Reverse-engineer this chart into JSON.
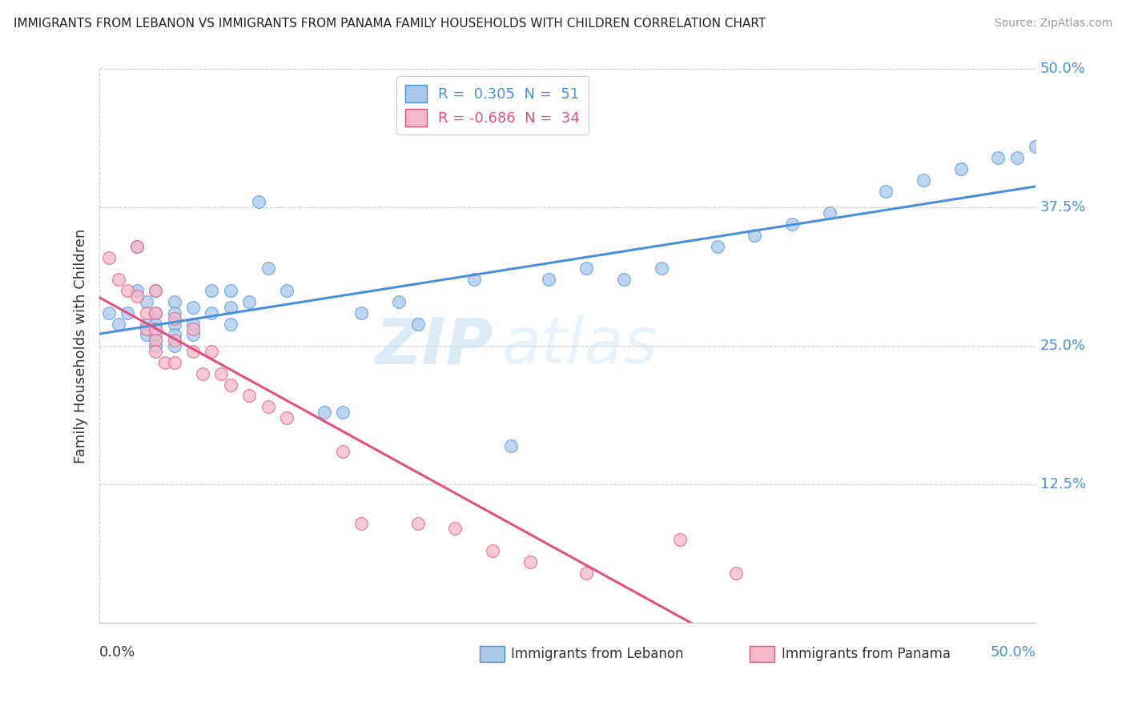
{
  "title": "IMMIGRANTS FROM LEBANON VS IMMIGRANTS FROM PANAMA FAMILY HOUSEHOLDS WITH CHILDREN CORRELATION CHART",
  "source": "Source: ZipAtlas.com",
  "ylabel": "Family Households with Children",
  "xlim": [
    0.0,
    0.5
  ],
  "ylim": [
    0.0,
    0.5
  ],
  "color_blue": "#aac8ea",
  "color_pink": "#f4b8c8",
  "line_color_blue": "#4a90d9",
  "line_color_pink": "#e05080",
  "watermark_zip": "ZIP",
  "watermark_atlas": "atlas",
  "lebanon_x": [
    0.005,
    0.01,
    0.015,
    0.02,
    0.02,
    0.025,
    0.025,
    0.025,
    0.03,
    0.03,
    0.03,
    0.03,
    0.03,
    0.04,
    0.04,
    0.04,
    0.04,
    0.04,
    0.05,
    0.05,
    0.05,
    0.06,
    0.06,
    0.07,
    0.07,
    0.07,
    0.08,
    0.085,
    0.09,
    0.1,
    0.12,
    0.13,
    0.14,
    0.16,
    0.17,
    0.2,
    0.22,
    0.24,
    0.26,
    0.28,
    0.3,
    0.33,
    0.35,
    0.37,
    0.39,
    0.42,
    0.44,
    0.46,
    0.48,
    0.49,
    0.5
  ],
  "lebanon_y": [
    0.28,
    0.27,
    0.28,
    0.34,
    0.3,
    0.29,
    0.27,
    0.26,
    0.3,
    0.28,
    0.27,
    0.26,
    0.25,
    0.29,
    0.28,
    0.27,
    0.26,
    0.25,
    0.285,
    0.27,
    0.26,
    0.3,
    0.28,
    0.3,
    0.285,
    0.27,
    0.29,
    0.38,
    0.32,
    0.3,
    0.19,
    0.19,
    0.28,
    0.29,
    0.27,
    0.31,
    0.16,
    0.31,
    0.32,
    0.31,
    0.32,
    0.34,
    0.35,
    0.36,
    0.37,
    0.39,
    0.4,
    0.41,
    0.42,
    0.42,
    0.43
  ],
  "panama_x": [
    0.005,
    0.01,
    0.015,
    0.02,
    0.02,
    0.025,
    0.025,
    0.03,
    0.03,
    0.03,
    0.03,
    0.03,
    0.035,
    0.04,
    0.04,
    0.04,
    0.05,
    0.05,
    0.055,
    0.06,
    0.065,
    0.07,
    0.08,
    0.09,
    0.1,
    0.13,
    0.14,
    0.17,
    0.19,
    0.21,
    0.23,
    0.26,
    0.31,
    0.34
  ],
  "panama_y": [
    0.33,
    0.31,
    0.3,
    0.34,
    0.295,
    0.28,
    0.265,
    0.3,
    0.28,
    0.265,
    0.255,
    0.245,
    0.235,
    0.275,
    0.255,
    0.235,
    0.265,
    0.245,
    0.225,
    0.245,
    0.225,
    0.215,
    0.205,
    0.195,
    0.185,
    0.155,
    0.09,
    0.09,
    0.085,
    0.065,
    0.055,
    0.045,
    0.075,
    0.045
  ]
}
